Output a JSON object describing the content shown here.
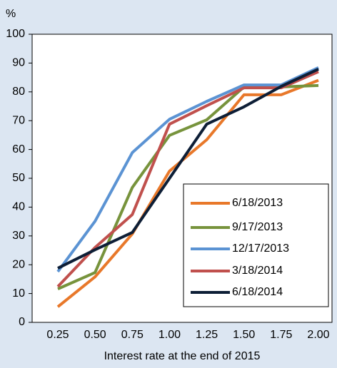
{
  "chart_data": {
    "type": "line",
    "y_unit_label": "%",
    "x_label": "Interest rate at the end of 2015",
    "categories": [
      "0.25",
      "0.50",
      "0.75",
      "1.00",
      "1.25",
      "1.50",
      "1.75",
      "2.00"
    ],
    "series": [
      {
        "name": "6/18/2013",
        "color": "#e8782a",
        "values": [
          5.4,
          15.8,
          30.7,
          52.5,
          63.4,
          79,
          79,
          84
        ]
      },
      {
        "name": "9/17/2013",
        "color": "#77933c",
        "values": [
          11.6,
          17.3,
          46.8,
          64.9,
          70.3,
          81.7,
          81.7,
          82.2
        ]
      },
      {
        "name": "12/17/2013",
        "color": "#5b93d3",
        "values": [
          17.6,
          35.1,
          58.9,
          70.5,
          76.7,
          82.4,
          82.4,
          88.4
        ]
      },
      {
        "name": "3/18/2014",
        "color": "#c0504d",
        "values": [
          12.4,
          26,
          37.4,
          68.8,
          75.2,
          81.4,
          81.4,
          87
        ]
      },
      {
        "name": "6/18/2014",
        "color": "#0d1e36",
        "values": [
          18.8,
          25.2,
          31.2,
          50,
          68.8,
          74.8,
          81.9,
          87.9
        ]
      }
    ],
    "ylim": [
      0,
      100
    ],
    "yticks": [
      0,
      10,
      20,
      30,
      40,
      50,
      60,
      70,
      80,
      90,
      100
    ]
  }
}
